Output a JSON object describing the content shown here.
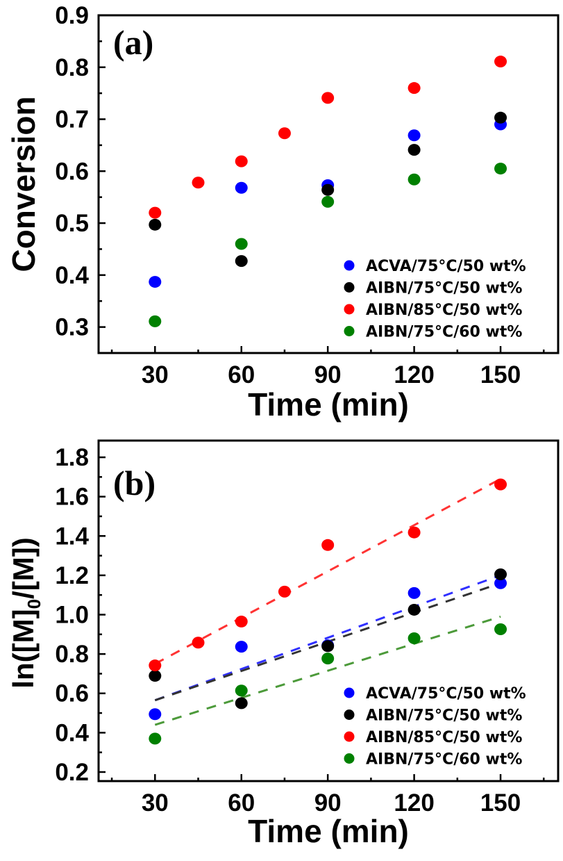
{
  "chart_data": [
    {
      "type": "scatter",
      "panel_label": "(a)",
      "title": "",
      "xlabel": "Time (min)",
      "ylabel": "Conversion",
      "xlim": [
        10.4,
        170
      ],
      "ylim": [
        0.25,
        0.9
      ],
      "xticks": [
        30,
        60,
        90,
        120,
        150
      ],
      "xtick_labels": [
        "30",
        "60",
        "90",
        "120",
        "150"
      ],
      "yticks": [
        0.3,
        0.4,
        0.5,
        0.6,
        0.7,
        0.8,
        0.9
      ],
      "ytick_labels": [
        "0.3",
        "0.4",
        "0.5",
        "0.6",
        "0.7",
        "0.8",
        "0.9"
      ],
      "grid": false,
      "legend_position": "bottom-right",
      "series": [
        {
          "name": "ACVA/75°C/50 wt%",
          "color": "#0000ff",
          "x": [
            30,
            60,
            90,
            120,
            150
          ],
          "y": [
            0.387,
            0.568,
            0.573,
            0.669,
            0.69
          ]
        },
        {
          "name": "AIBN/75°C/50 wt%",
          "color": "#000000",
          "x": [
            30,
            60,
            90,
            120,
            150
          ],
          "y": [
            0.497,
            0.427,
            0.564,
            0.641,
            0.703
          ]
        },
        {
          "name": "AIBN/85°C/50 wt%",
          "color": "#ff0000",
          "x": [
            30,
            45,
            60,
            75,
            90,
            120,
            150
          ],
          "y": [
            0.52,
            0.578,
            0.619,
            0.673,
            0.741,
            0.76,
            0.811
          ]
        },
        {
          "name": "AIBN/75°C/60 wt%",
          "color": "#008000",
          "x": [
            30,
            60,
            90,
            120,
            150
          ],
          "y": [
            0.311,
            0.46,
            0.541,
            0.584,
            0.605
          ]
        }
      ]
    },
    {
      "type": "scatter",
      "panel_label": "(b)",
      "title": "",
      "xlabel": "Time (min)",
      "ylabel": "ln([M]0/[M])",
      "ylabel_parts": {
        "pre": "ln([M]",
        "sub": "0",
        "post": "/[M])"
      },
      "xlim": [
        10.4,
        170
      ],
      "ylim": [
        0.154,
        1.885
      ],
      "xticks": [
        30,
        60,
        90,
        120,
        150
      ],
      "xtick_labels": [
        "30",
        "60",
        "90",
        "120",
        "150"
      ],
      "yticks": [
        0.2,
        0.4,
        0.6,
        0.8,
        1.0,
        1.2,
        1.4,
        1.6,
        1.8
      ],
      "ytick_labels": [
        "0.2",
        "0.4",
        "0.6",
        "0.8",
        "1.0",
        "1.2",
        "1.4",
        "1.6",
        "1.8"
      ],
      "grid": false,
      "legend_position": "bottom-right",
      "series": [
        {
          "name": "ACVA/75°C/50 wt%",
          "color": "#0000ff",
          "fit_color": "#3030ff",
          "x": [
            30,
            60,
            90,
            120,
            150
          ],
          "y": [
            0.494,
            0.837,
            0.844,
            1.11,
            1.16
          ],
          "fit": {
            "x": [
              30,
              150
            ],
            "y": [
              0.565,
              1.2
            ]
          }
        },
        {
          "name": "AIBN/75°C/50 wt%",
          "color": "#000000",
          "fit_color": "#333333",
          "x": [
            30,
            60,
            90,
            120,
            150
          ],
          "y": [
            0.689,
            0.55,
            0.84,
            1.025,
            1.205
          ],
          "fit": {
            "x": [
              30,
              150
            ],
            "y": [
              0.565,
              1.16
            ]
          }
        },
        {
          "name": "AIBN/85°C/50 wt%",
          "color": "#ff0000",
          "fit_color": "#ff3333",
          "x": [
            30,
            45,
            60,
            75,
            90,
            120,
            150
          ],
          "y": [
            0.742,
            0.858,
            0.965,
            1.117,
            1.354,
            1.418,
            1.662
          ],
          "fit": {
            "x": [
              30,
              150
            ],
            "y": [
              0.75,
              1.69
            ]
          }
        },
        {
          "name": "AIBN/75°C/60 wt%",
          "color": "#008000",
          "fit_color": "#4c9a3a",
          "x": [
            30,
            60,
            90,
            120,
            150
          ],
          "y": [
            0.37,
            0.614,
            0.777,
            0.88,
            0.926
          ],
          "fit": {
            "x": [
              30,
              150
            ],
            "y": [
              0.44,
              0.99
            ]
          }
        }
      ]
    }
  ]
}
